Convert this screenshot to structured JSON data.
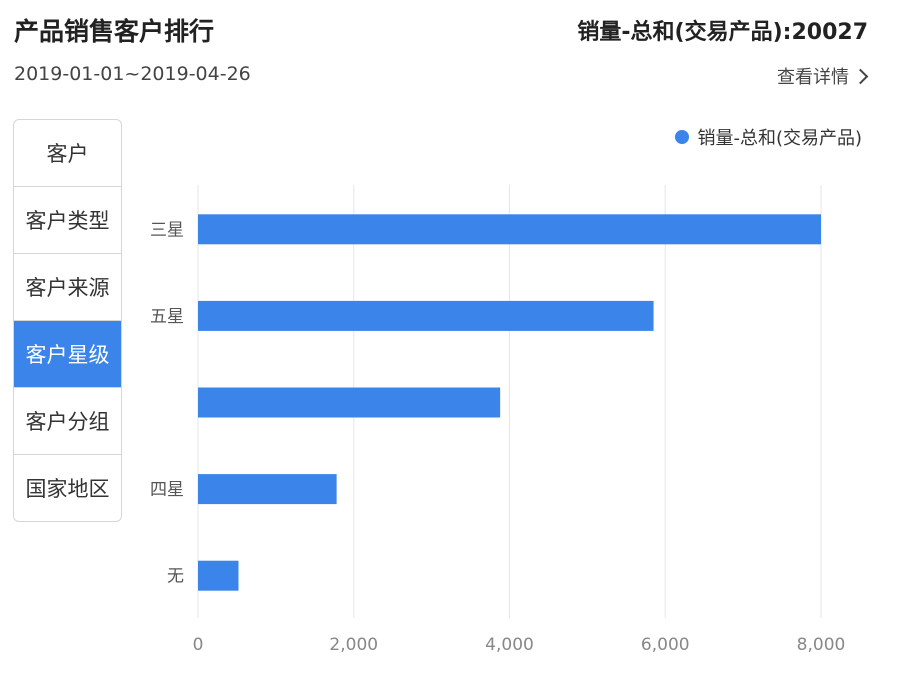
{
  "header": {
    "title": "产品销售客户排行",
    "total": "销量-总和(交易产品):20027",
    "date_range": "2019-01-01~2019-04-26",
    "details_label": "查看详情"
  },
  "tabs": [
    {
      "label": "客户",
      "active": false
    },
    {
      "label": "客户类型",
      "active": false
    },
    {
      "label": "客户来源",
      "active": false
    },
    {
      "label": "客户星级",
      "active": true
    },
    {
      "label": "客户分组",
      "active": false
    },
    {
      "label": "国家地区",
      "active": false
    }
  ],
  "colors": {
    "accent": "#3a84ea"
  },
  "chart_data": {
    "type": "bar",
    "orientation": "horizontal",
    "categories": [
      "三星",
      "五星",
      "",
      "四星",
      "无"
    ],
    "series": [
      {
        "name": "销量-总和(交易产品)",
        "values": [
          8000,
          5850,
          3880,
          1780,
          520
        ]
      }
    ],
    "xlim": [
      0,
      8000
    ],
    "xticks": [
      "0",
      "2,000",
      "4,000",
      "6,000",
      "8,000"
    ],
    "grid": true,
    "legend_position": "top-right"
  }
}
